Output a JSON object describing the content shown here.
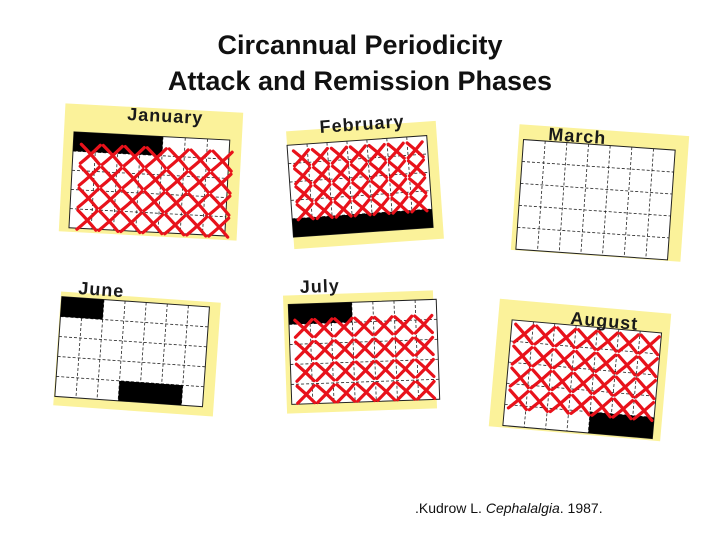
{
  "title": {
    "line1": "Circannual Periodicity",
    "line2": "Attack and Remission Phases"
  },
  "citation": {
    "prefix": ".Kudrow L. ",
    "journal": "Cephalalgia",
    "suffix": ". 1987."
  },
  "colors": {
    "card": "#fbf29a",
    "grid_line": "#222222",
    "mark": "#e8121b",
    "filled_block": "#000000"
  },
  "months": [
    {
      "id": "january",
      "label": "January",
      "attack_days": "cross marks covering most days"
    },
    {
      "id": "february",
      "label": "February",
      "attack_days": "cross marks covering most days"
    },
    {
      "id": "march",
      "label": "March",
      "attack_days": "none"
    },
    {
      "id": "june",
      "label": "June",
      "attack_days": "none"
    },
    {
      "id": "july",
      "label": "July",
      "attack_days": "cross marks covering most days"
    },
    {
      "id": "august",
      "label": "August",
      "attack_days": "cross marks covering most days"
    }
  ]
}
